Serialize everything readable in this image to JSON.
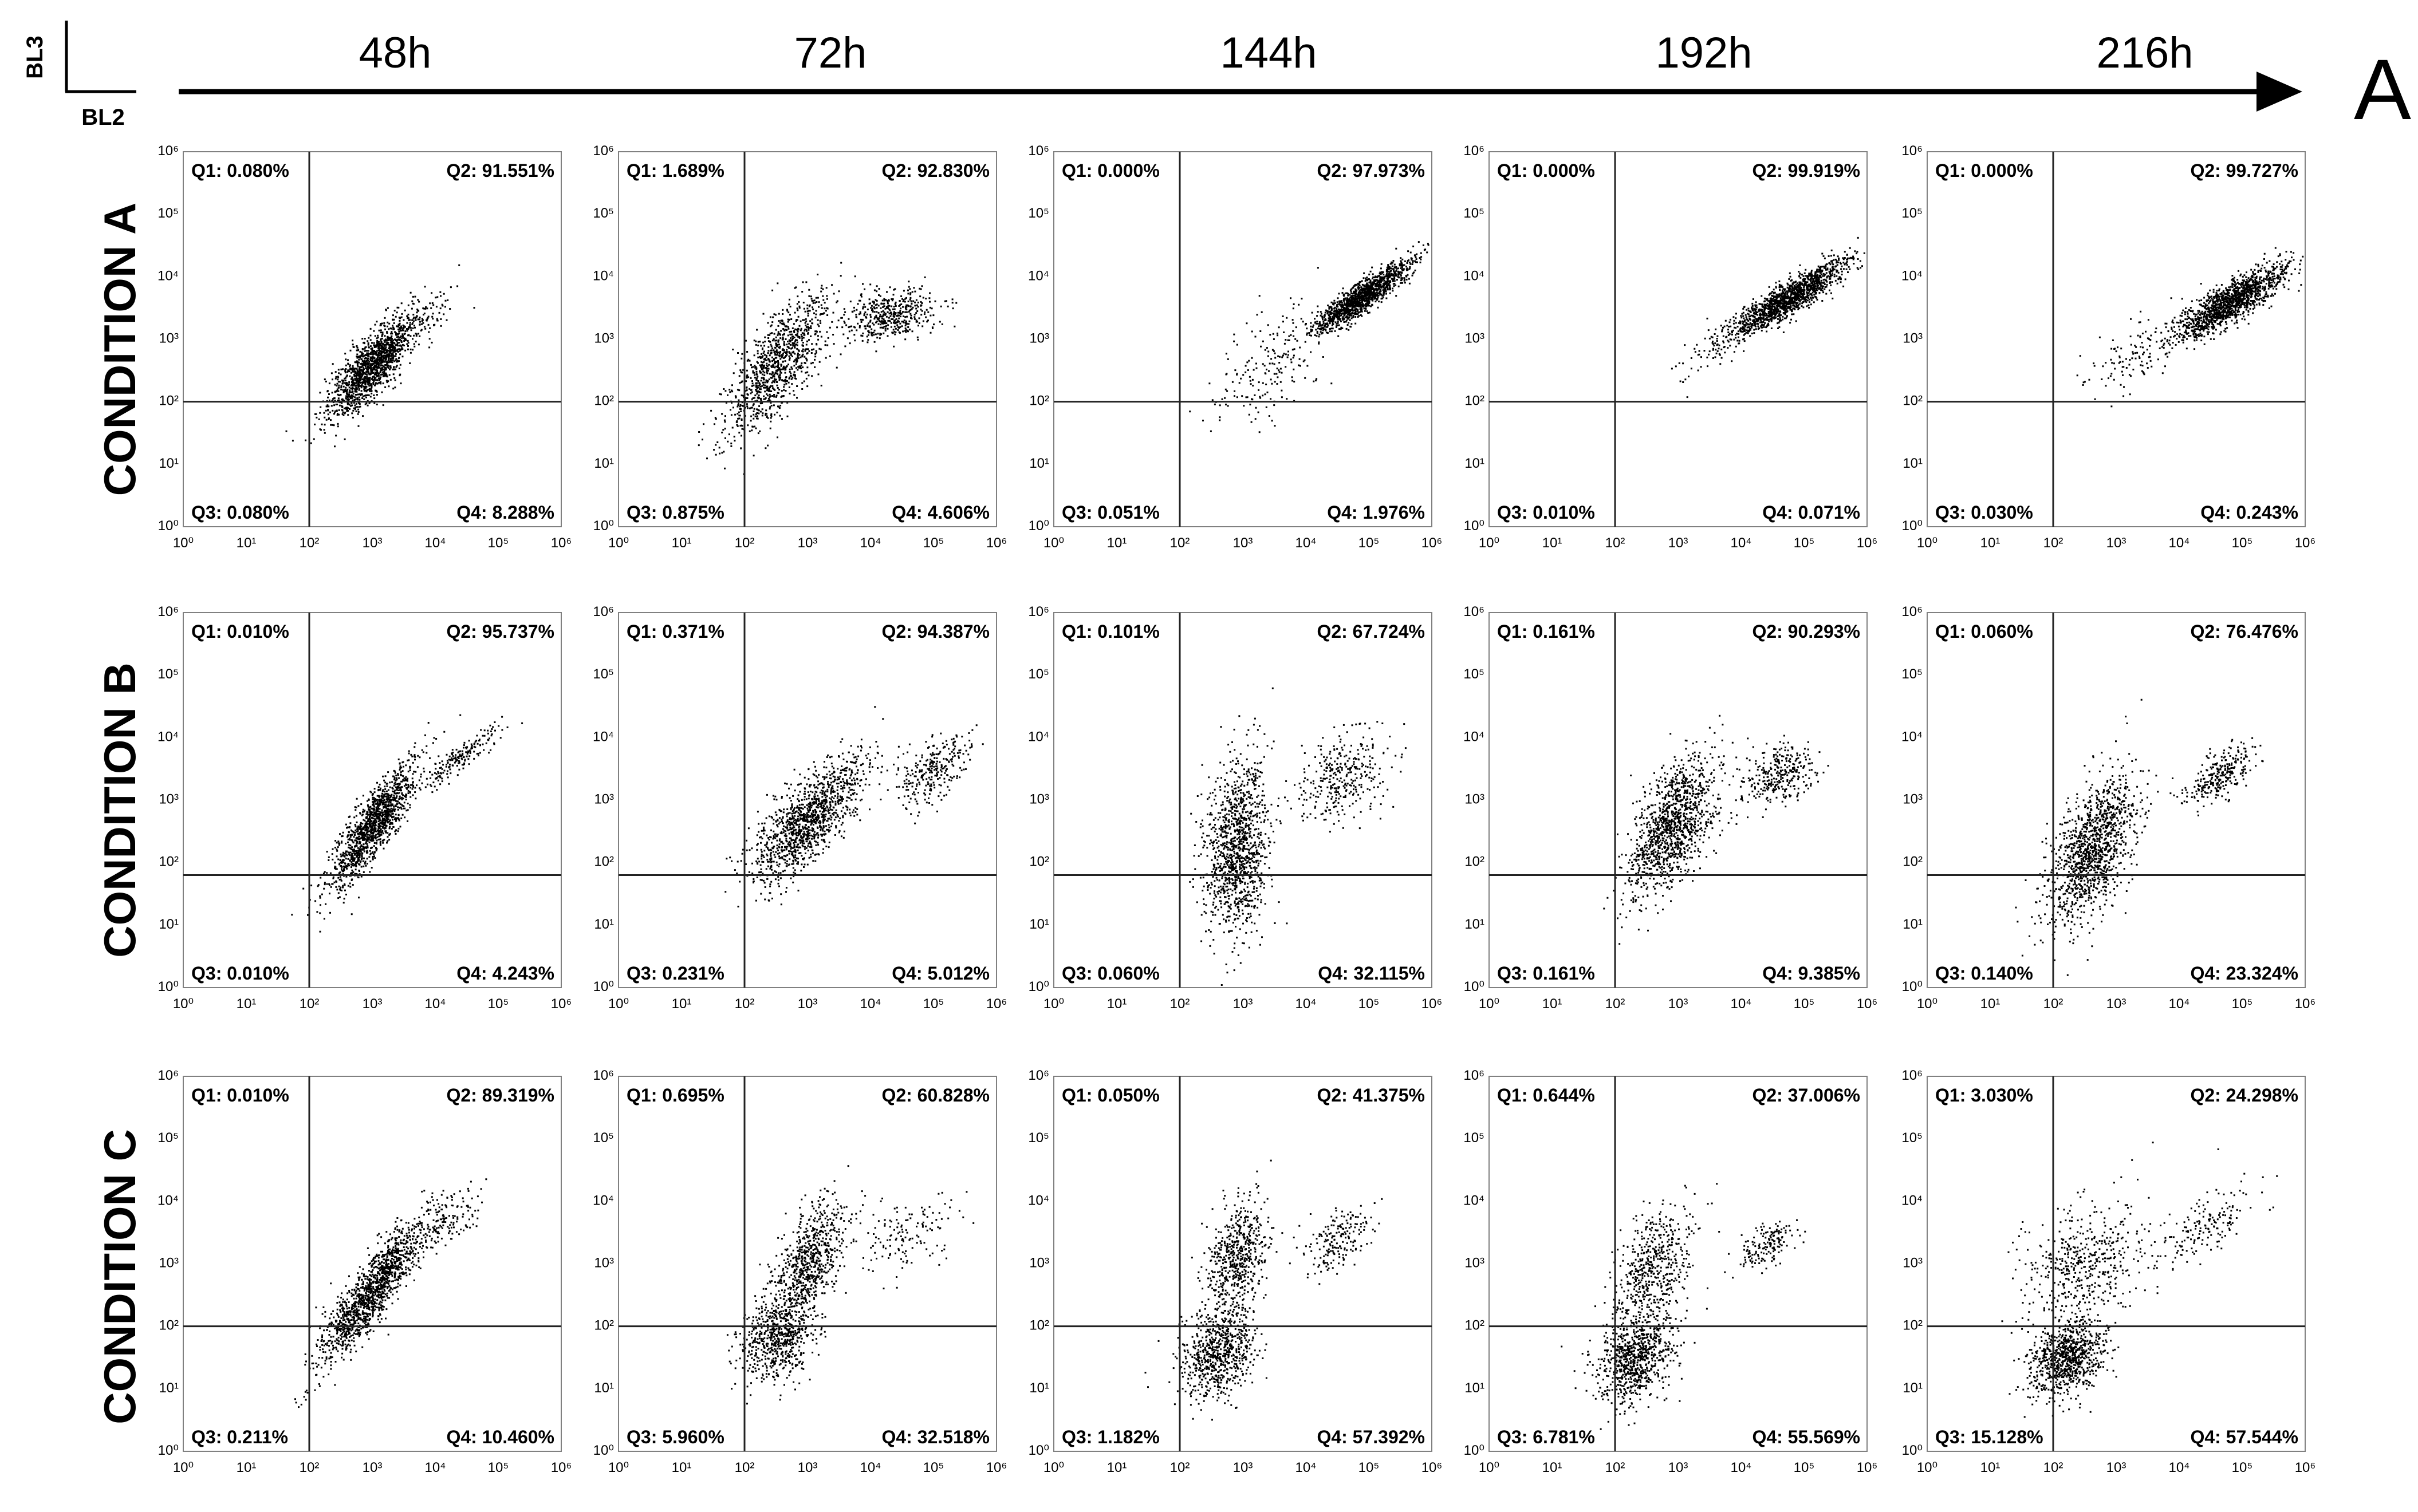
{
  "header": {
    "y_channel": "BL3",
    "x_channel": "BL2",
    "panel_letter": "A",
    "timepoints": [
      "48h",
      "72h",
      "144h",
      "192h",
      "216h"
    ]
  },
  "rows": [
    "CONDITION A",
    "CONDITION B",
    "CONDITION C"
  ],
  "quadrant_labels": [
    "Q1",
    "Q2",
    "Q3",
    "Q4"
  ],
  "axis_ticks": [
    "10⁰",
    "10¹",
    "10²",
    "10³",
    "10⁴",
    "10⁵",
    "10⁶"
  ],
  "colors": {
    "dots": "#000000",
    "frame": "#808080",
    "gate": "#222222"
  },
  "chart_data": [
    {
      "type": "scatter",
      "row": "CONDITION A",
      "timepoint": "48h",
      "xlim": [
        0,
        6
      ],
      "ylim": [
        0,
        6
      ],
      "gate": [
        2.0,
        2.0
      ],
      "quadrants": {
        "Q1": "0.080%",
        "Q2": "91.551%",
        "Q3": "0.080%",
        "Q4": "8.288%"
      },
      "clusters": [
        {
          "x": 3.0,
          "y": 2.6,
          "sx": 0.35,
          "sy": 0.4,
          "rho": 0.8,
          "w": 0.96
        },
        {
          "x": 3.8,
          "y": 3.4,
          "sx": 0.3,
          "sy": 0.25,
          "rho": 0.6,
          "w": 0.04
        }
      ]
    },
    {
      "type": "scatter",
      "row": "CONDITION A",
      "timepoint": "72h",
      "xlim": [
        0,
        6
      ],
      "ylim": [
        0,
        6
      ],
      "gate": [
        2.0,
        2.0
      ],
      "quadrants": {
        "Q1": "1.689%",
        "Q2": "92.830%",
        "Q3": "0.875%",
        "Q4": "4.606%"
      },
      "clusters": [
        {
          "x": 2.5,
          "y": 2.6,
          "sx": 0.4,
          "sy": 0.55,
          "rho": 0.75,
          "w": 0.7
        },
        {
          "x": 4.3,
          "y": 3.4,
          "sx": 0.35,
          "sy": 0.2,
          "rho": 0.3,
          "w": 0.3
        }
      ]
    },
    {
      "type": "scatter",
      "row": "CONDITION A",
      "timepoint": "144h",
      "xlim": [
        0,
        6
      ],
      "ylim": [
        0,
        6
      ],
      "gate": [
        2.0,
        2.0
      ],
      "quadrants": {
        "Q1": "0.000%",
        "Q2": "97.973%",
        "Q3": "0.051%",
        "Q4": "1.976%"
      },
      "clusters": [
        {
          "x": 4.9,
          "y": 3.7,
          "sx": 0.4,
          "sy": 0.3,
          "rho": 0.9,
          "w": 0.88
        },
        {
          "x": 3.4,
          "y": 2.6,
          "sx": 0.45,
          "sy": 0.5,
          "rho": 0.6,
          "w": 0.12
        }
      ]
    },
    {
      "type": "scatter",
      "row": "CONDITION A",
      "timepoint": "192h",
      "xlim": [
        0,
        6
      ],
      "ylim": [
        0,
        6
      ],
      "gate": [
        2.0,
        2.0
      ],
      "quadrants": {
        "Q1": "0.000%",
        "Q2": "99.919%",
        "Q3": "0.010%",
        "Q4": "0.071%"
      },
      "clusters": [
        {
          "x": 4.8,
          "y": 3.7,
          "sx": 0.45,
          "sy": 0.3,
          "rho": 0.9,
          "w": 0.94
        },
        {
          "x": 3.6,
          "y": 2.9,
          "sx": 0.35,
          "sy": 0.3,
          "rho": 0.7,
          "w": 0.06
        }
      ]
    },
    {
      "type": "scatter",
      "row": "CONDITION A",
      "timepoint": "216h",
      "xlim": [
        0,
        6
      ],
      "ylim": [
        0,
        6
      ],
      "gate": [
        2.0,
        2.0
      ],
      "quadrants": {
        "Q1": "0.000%",
        "Q2": "99.727%",
        "Q3": "0.030%",
        "Q4": "0.243%"
      },
      "clusters": [
        {
          "x": 4.8,
          "y": 3.6,
          "sx": 0.45,
          "sy": 0.3,
          "rho": 0.85,
          "w": 0.92
        },
        {
          "x": 3.3,
          "y": 2.8,
          "sx": 0.4,
          "sy": 0.35,
          "rho": 0.6,
          "w": 0.08
        }
      ]
    },
    {
      "type": "scatter",
      "row": "CONDITION B",
      "timepoint": "48h",
      "xlim": [
        0,
        6
      ],
      "ylim": [
        0,
        6
      ],
      "gate": [
        2.0,
        1.8
      ],
      "quadrants": {
        "Q1": "0.010%",
        "Q2": "95.737%",
        "Q3": "0.010%",
        "Q4": "4.243%"
      },
      "clusters": [
        {
          "x": 3.0,
          "y": 2.6,
          "sx": 0.35,
          "sy": 0.5,
          "rho": 0.85,
          "w": 0.88
        },
        {
          "x": 4.4,
          "y": 3.7,
          "sx": 0.3,
          "sy": 0.25,
          "rho": 0.9,
          "w": 0.12
        }
      ]
    },
    {
      "type": "scatter",
      "row": "CONDITION B",
      "timepoint": "72h",
      "xlim": [
        0,
        6
      ],
      "ylim": [
        0,
        6
      ],
      "gate": [
        2.0,
        1.8
      ],
      "quadrants": {
        "Q1": "0.371%",
        "Q2": "94.387%",
        "Q3": "0.231%",
        "Q4": "5.012%"
      },
      "clusters": [
        {
          "x": 3.0,
          "y": 2.7,
          "sx": 0.45,
          "sy": 0.5,
          "rho": 0.75,
          "w": 0.82
        },
        {
          "x": 5.0,
          "y": 3.5,
          "sx": 0.3,
          "sy": 0.3,
          "rho": 0.6,
          "w": 0.18
        }
      ]
    },
    {
      "type": "scatter",
      "row": "CONDITION B",
      "timepoint": "144h",
      "xlim": [
        0,
        6
      ],
      "ylim": [
        0,
        6
      ],
      "gate": [
        2.0,
        1.8
      ],
      "quadrants": {
        "Q1": "0.101%",
        "Q2": "67.724%",
        "Q3": "0.060%",
        "Q4": "32.115%"
      },
      "clusters": [
        {
          "x": 2.9,
          "y": 2.2,
          "sx": 0.25,
          "sy": 0.7,
          "rho": 0.2,
          "w": 0.8
        },
        {
          "x": 4.6,
          "y": 3.4,
          "sx": 0.35,
          "sy": 0.35,
          "rho": 0.3,
          "w": 0.2
        }
      ]
    },
    {
      "type": "scatter",
      "row": "CONDITION B",
      "timepoint": "192h",
      "xlim": [
        0,
        6
      ],
      "ylim": [
        0,
        6
      ],
      "gate": [
        2.0,
        1.8
      ],
      "quadrants": {
        "Q1": "0.161%",
        "Q2": "90.293%",
        "Q3": "0.161%",
        "Q4": "9.385%"
      },
      "clusters": [
        {
          "x": 2.9,
          "y": 2.6,
          "sx": 0.35,
          "sy": 0.55,
          "rho": 0.55,
          "w": 0.78
        },
        {
          "x": 4.6,
          "y": 3.4,
          "sx": 0.3,
          "sy": 0.25,
          "rho": 0.4,
          "w": 0.22
        }
      ]
    },
    {
      "type": "scatter",
      "row": "CONDITION B",
      "timepoint": "216h",
      "xlim": [
        0,
        6
      ],
      "ylim": [
        0,
        6
      ],
      "gate": [
        2.0,
        1.8
      ],
      "quadrants": {
        "Q1": "0.060%",
        "Q2": "76.476%",
        "Q3": "0.140%",
        "Q4": "23.324%"
      },
      "clusters": [
        {
          "x": 2.6,
          "y": 2.2,
          "sx": 0.35,
          "sy": 0.6,
          "rho": 0.55,
          "w": 0.8
        },
        {
          "x": 4.6,
          "y": 3.4,
          "sx": 0.3,
          "sy": 0.25,
          "rho": 0.7,
          "w": 0.2
        }
      ]
    },
    {
      "type": "scatter",
      "row": "CONDITION C",
      "timepoint": "48h",
      "xlim": [
        0,
        6
      ],
      "ylim": [
        0,
        6
      ],
      "gate": [
        2.0,
        2.0
      ],
      "quadrants": {
        "Q1": "0.010%",
        "Q2": "89.319%",
        "Q3": "0.211%",
        "Q4": "10.460%"
      },
      "clusters": [
        {
          "x": 3.0,
          "y": 2.6,
          "sx": 0.4,
          "sy": 0.55,
          "rho": 0.88,
          "w": 0.9
        },
        {
          "x": 4.2,
          "y": 3.7,
          "sx": 0.3,
          "sy": 0.25,
          "rho": 0.6,
          "w": 0.1
        }
      ]
    },
    {
      "type": "scatter",
      "row": "CONDITION C",
      "timepoint": "72h",
      "xlim": [
        0,
        6
      ],
      "ylim": [
        0,
        6
      ],
      "gate": [
        2.0,
        2.0
      ],
      "quadrants": {
        "Q1": "0.695%",
        "Q2": "60.828%",
        "Q3": "5.960%",
        "Q4": "32.518%"
      },
      "clusters": [
        {
          "x": 2.5,
          "y": 1.8,
          "sx": 0.3,
          "sy": 0.35,
          "rho": 0.3,
          "w": 0.4
        },
        {
          "x": 3.0,
          "y": 3.0,
          "sx": 0.3,
          "sy": 0.5,
          "rho": 0.6,
          "w": 0.5
        },
        {
          "x": 4.6,
          "y": 3.5,
          "sx": 0.35,
          "sy": 0.3,
          "rho": 0.3,
          "w": 0.1
        }
      ]
    },
    {
      "type": "scatter",
      "row": "CONDITION C",
      "timepoint": "144h",
      "xlim": [
        0,
        6
      ],
      "ylim": [
        0,
        6
      ],
      "gate": [
        2.0,
        2.0
      ],
      "quadrants": {
        "Q1": "0.050%",
        "Q2": "41.375%",
        "Q3": "1.182%",
        "Q4": "57.392%"
      },
      "clusters": [
        {
          "x": 2.6,
          "y": 1.6,
          "sx": 0.3,
          "sy": 0.35,
          "rho": 0.3,
          "w": 0.5
        },
        {
          "x": 2.9,
          "y": 3.1,
          "sx": 0.25,
          "sy": 0.45,
          "rho": 0.4,
          "w": 0.38
        },
        {
          "x": 4.5,
          "y": 3.4,
          "sx": 0.25,
          "sy": 0.25,
          "rho": 0.4,
          "w": 0.12
        }
      ]
    },
    {
      "type": "scatter",
      "row": "CONDITION C",
      "timepoint": "192h",
      "xlim": [
        0,
        6
      ],
      "ylim": [
        0,
        6
      ],
      "gate": [
        2.0,
        2.0
      ],
      "quadrants": {
        "Q1": "0.644%",
        "Q2": "37.006%",
        "Q3": "6.781%",
        "Q4": "55.569%"
      },
      "clusters": [
        {
          "x": 2.3,
          "y": 1.5,
          "sx": 0.3,
          "sy": 0.35,
          "rho": 0.3,
          "w": 0.55
        },
        {
          "x": 2.6,
          "y": 3.0,
          "sx": 0.3,
          "sy": 0.5,
          "rho": 0.4,
          "w": 0.35
        },
        {
          "x": 4.4,
          "y": 3.3,
          "sx": 0.25,
          "sy": 0.2,
          "rho": 0.6,
          "w": 0.1
        }
      ]
    },
    {
      "type": "scatter",
      "row": "CONDITION C",
      "timepoint": "216h",
      "xlim": [
        0,
        6
      ],
      "ylim": [
        0,
        6
      ],
      "gate": [
        2.0,
        2.0
      ],
      "quadrants": {
        "Q1": "3.030%",
        "Q2": "24.298%",
        "Q3": "15.128%",
        "Q4": "57.544%"
      },
      "clusters": [
        {
          "x": 2.2,
          "y": 1.5,
          "sx": 0.3,
          "sy": 0.3,
          "rho": 0.3,
          "w": 0.55
        },
        {
          "x": 2.5,
          "y": 3.0,
          "sx": 0.5,
          "sy": 0.5,
          "rho": 0.2,
          "w": 0.35
        },
        {
          "x": 4.4,
          "y": 3.6,
          "sx": 0.35,
          "sy": 0.3,
          "rho": 0.6,
          "w": 0.1
        }
      ]
    }
  ]
}
